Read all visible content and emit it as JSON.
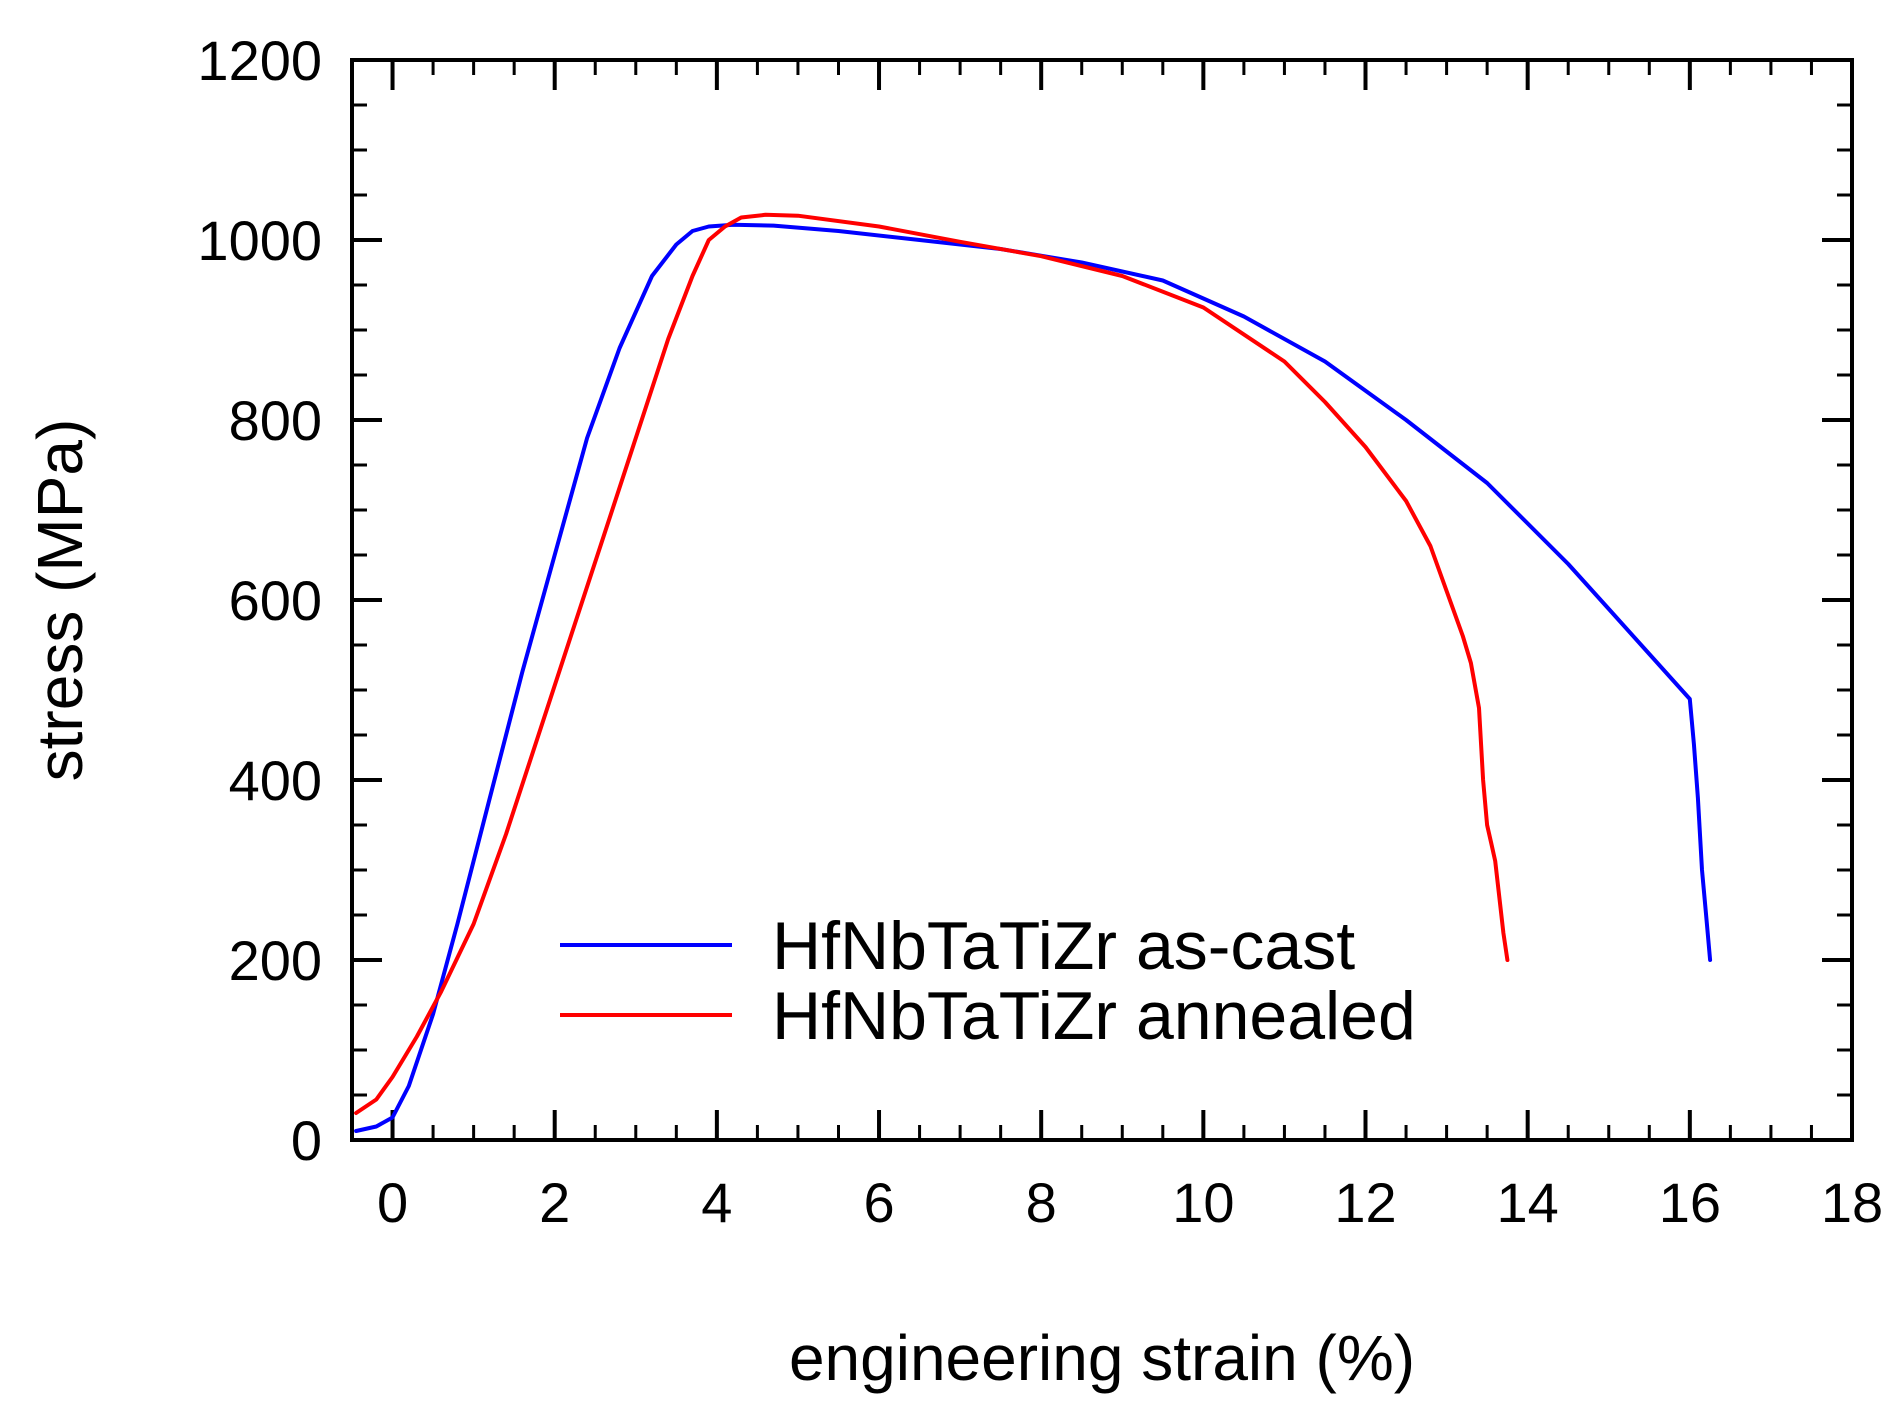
{
  "chart_data": {
    "type": "line",
    "title": "",
    "xlabel": "engineering strain (%)",
    "ylabel": "stress (MPa)",
    "xlim": [
      -0.5,
      18
    ],
    "ylim": [
      0,
      1200
    ],
    "x_ticks": [
      0,
      2,
      4,
      6,
      8,
      10,
      12,
      14,
      16,
      18
    ],
    "x_tick_labels": [
      "0",
      "2",
      "4",
      "6",
      "8",
      "10",
      "12",
      "14",
      "16",
      "18"
    ],
    "y_ticks": [
      0,
      200,
      400,
      600,
      800,
      1000,
      1200
    ],
    "y_tick_labels": [
      "0",
      "200",
      "400",
      "600",
      "800",
      "1000",
      "1200"
    ],
    "x_minor_step": 0.5,
    "y_minor_step": 50,
    "grid": false,
    "legend_position": "bottom-center",
    "series": [
      {
        "name": "HfNbTaTiZr as-cast",
        "color": "#0000ff",
        "x": [
          -0.45,
          -0.2,
          0.0,
          0.2,
          0.5,
          0.8,
          1.2,
          1.6,
          2.0,
          2.4,
          2.8,
          3.2,
          3.5,
          3.7,
          3.9,
          4.2,
          4.7,
          5.5,
          6.5,
          7.5,
          8.5,
          9.5,
          10.5,
          11.5,
          12.5,
          13.5,
          14.5,
          15.0,
          15.5,
          15.8,
          16.0,
          16.05,
          16.1,
          16.15,
          16.2,
          16.25
        ],
        "y": [
          10,
          15,
          25,
          60,
          140,
          240,
          380,
          520,
          650,
          780,
          880,
          960,
          995,
          1010,
          1015,
          1017,
          1016,
          1010,
          1000,
          990,
          975,
          955,
          915,
          865,
          800,
          730,
          640,
          590,
          540,
          510,
          490,
          440,
          380,
          300,
          250,
          200
        ]
      },
      {
        "name": "HfNbTaTiZr annealed",
        "color": "#ff0000",
        "x": [
          -0.45,
          -0.2,
          0.0,
          0.3,
          0.6,
          1.0,
          1.4,
          1.8,
          2.2,
          2.6,
          3.0,
          3.4,
          3.7,
          3.9,
          4.1,
          4.3,
          4.6,
          5.0,
          6.0,
          7.0,
          8.0,
          9.0,
          10.0,
          11.0,
          11.5,
          12.0,
          12.5,
          12.8,
          13.0,
          13.2,
          13.3,
          13.4,
          13.45,
          13.5,
          13.55,
          13.6,
          13.65,
          13.7,
          13.75
        ],
        "y": [
          30,
          45,
          70,
          115,
          165,
          240,
          340,
          450,
          560,
          670,
          780,
          890,
          960,
          1000,
          1015,
          1025,
          1028,
          1027,
          1015,
          998,
          982,
          960,
          925,
          865,
          820,
          770,
          710,
          660,
          610,
          560,
          530,
          480,
          400,
          350,
          330,
          310,
          270,
          230,
          200
        ]
      }
    ]
  }
}
